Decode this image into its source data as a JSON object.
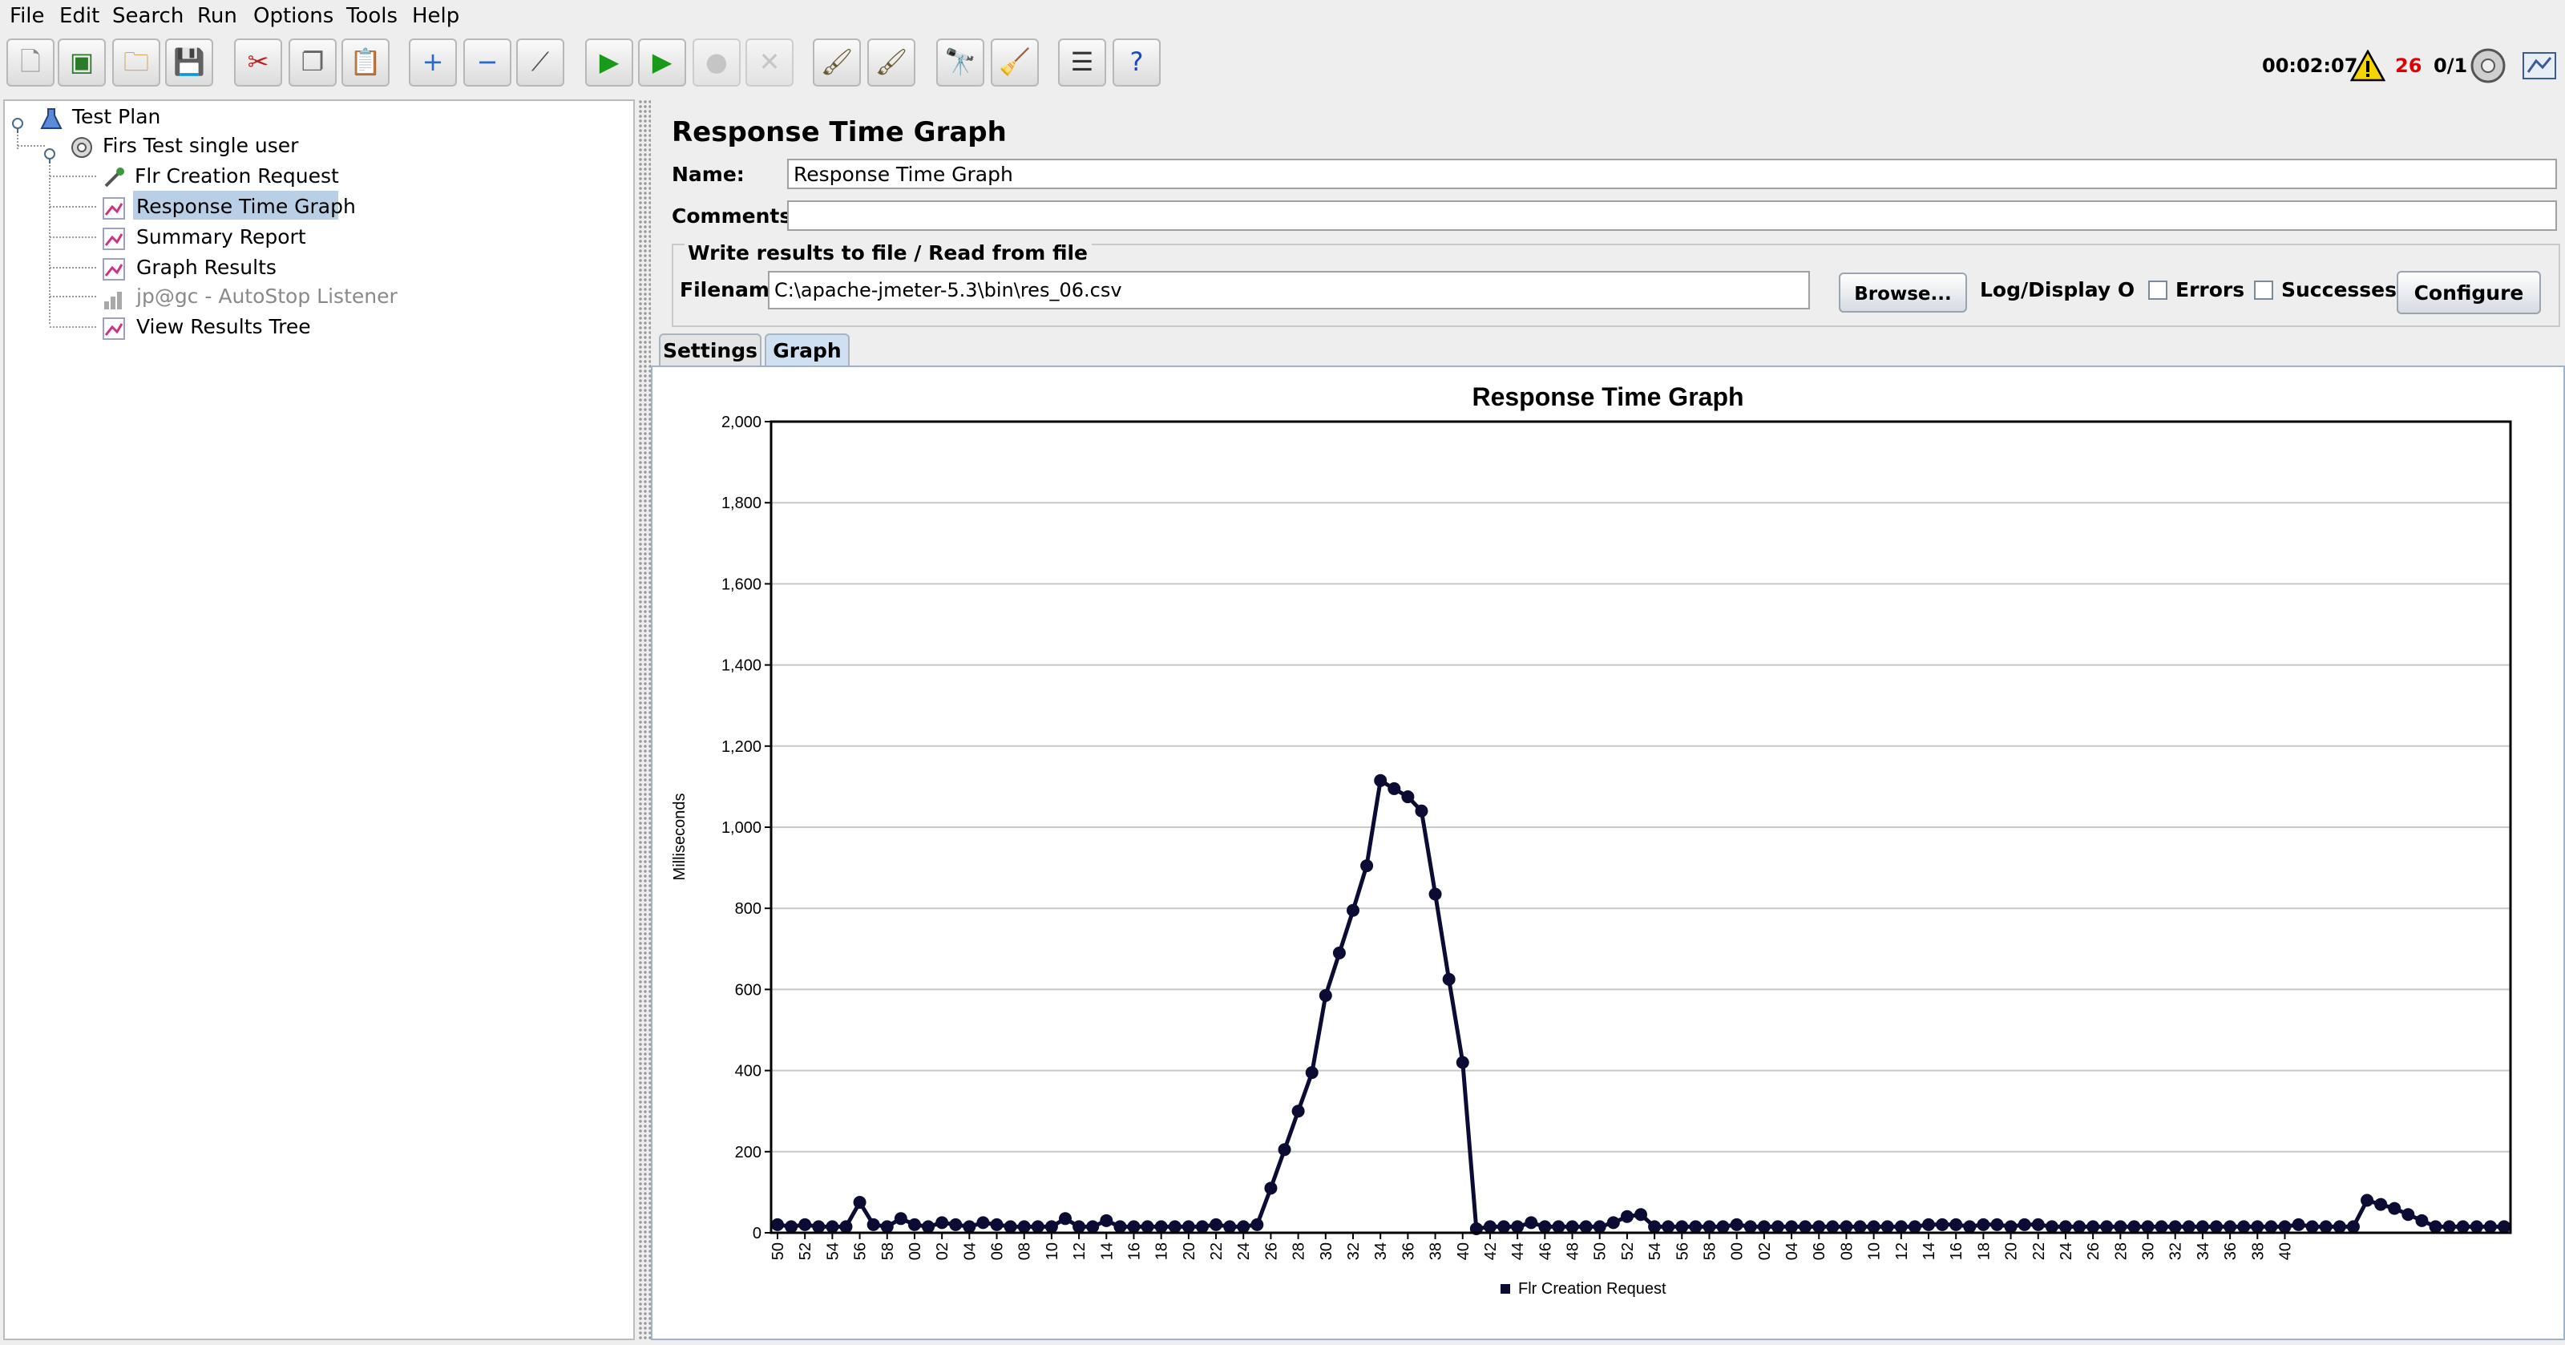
{
  "menu": [
    "File",
    "Edit",
    "Search",
    "Run",
    "Options",
    "Tools",
    "Help"
  ],
  "toolbar": {
    "buttons": [
      {
        "name": "new-icon",
        "glyph": "🗋"
      },
      {
        "name": "templates-icon",
        "glyph": "▣"
      },
      {
        "name": "open-icon",
        "glyph": "🗀"
      },
      {
        "name": "save-icon",
        "glyph": "💾"
      },
      {
        "name": "cut-icon",
        "glyph": "✂"
      },
      {
        "name": "copy-icon",
        "glyph": "❐"
      },
      {
        "name": "paste-icon",
        "glyph": "📋"
      },
      {
        "name": "expand-icon",
        "glyph": "+"
      },
      {
        "name": "collapse-icon",
        "glyph": "−"
      },
      {
        "name": "toggle-icon",
        "glyph": "⟋"
      },
      {
        "name": "start-icon",
        "glyph": "▶"
      },
      {
        "name": "start-no-pauses-icon",
        "glyph": "▶"
      },
      {
        "name": "stop-icon",
        "glyph": "●"
      },
      {
        "name": "shutdown-icon",
        "glyph": "✕"
      },
      {
        "name": "clear-icon",
        "glyph": "🖌"
      },
      {
        "name": "clear-all-icon",
        "glyph": "🖌"
      },
      {
        "name": "search-icon",
        "glyph": "🔭"
      },
      {
        "name": "reset-search-icon",
        "glyph": "🧹"
      },
      {
        "name": "function-helper-icon",
        "glyph": "☰"
      },
      {
        "name": "help-icon",
        "glyph": "?"
      }
    ],
    "elapsed_time": "00:02:07",
    "error_count": "26",
    "threads": "0/1"
  },
  "tree": {
    "items": [
      {
        "label": "Test Plan",
        "icon": "test-plan-icon",
        "disabled": false,
        "selected": false
      },
      {
        "label": "Firs Test single user",
        "icon": "thread-group-icon",
        "disabled": false,
        "selected": false
      },
      {
        "label": "Flr Creation Request",
        "icon": "http-sampler-icon",
        "disabled": false,
        "selected": false
      },
      {
        "label": "Response Time Graph",
        "icon": "graph-listener-icon",
        "disabled": false,
        "selected": true
      },
      {
        "label": "Summary Report",
        "icon": "graph-listener-icon",
        "disabled": false,
        "selected": false
      },
      {
        "label": "Graph Results",
        "icon": "graph-listener-icon",
        "disabled": false,
        "selected": false
      },
      {
        "label": "jp@gc - AutoStop Listener",
        "icon": "autostop-listener-icon",
        "disabled": true,
        "selected": false
      },
      {
        "label": "View Results Tree",
        "icon": "graph-listener-icon",
        "disabled": false,
        "selected": false
      }
    ]
  },
  "panel": {
    "title": "Response Time Graph",
    "name_label": "Name:",
    "name_value": "Response Time Graph",
    "comments_label": "Comments:",
    "comments_value": "",
    "file_group_title": "Write results to file / Read from file",
    "filename_label": "Filename",
    "filename_value": "C:\\apache-jmeter-5.3\\bin\\res_06.csv",
    "browse_label": "Browse...",
    "log_display_label": "Log/Display Only",
    "errors_label": "Errors",
    "successes_label": "Successes",
    "configure_label": "Configure",
    "tabs": [
      "Settings",
      "Graph"
    ],
    "active_tab": "Graph"
  },
  "colors": {
    "series": "#0b0b33",
    "selection": "#b8cfe5",
    "error_count": "#e00000"
  },
  "chart_data": {
    "type": "line",
    "title": "Response Time Graph",
    "xlabel": "",
    "ylabel": "Milliseconds",
    "ylim": [
      0,
      2000
    ],
    "yticks": [
      "0",
      "200",
      "400",
      "600",
      "800",
      "1,000",
      "1,200",
      "1,400",
      "1,600",
      "1,800",
      "2,000"
    ],
    "grid": true,
    "legend_position": "bottom",
    "x_tick_labels": [
      "50",
      "52",
      "54",
      "56",
      "58",
      "00",
      "02",
      "04",
      "06",
      "08",
      "10",
      "12",
      "14",
      "16",
      "18",
      "20",
      "22",
      "24",
      "26",
      "28",
      "30",
      "32",
      "34",
      "36",
      "38",
      "40",
      "42",
      "44",
      "46",
      "48",
      "50",
      "52",
      "54",
      "56",
      "58",
      "00",
      "02",
      "04",
      "06",
      "08",
      "10",
      "12",
      "14",
      "16",
      "18",
      "20",
      "22",
      "24",
      "26",
      "28",
      "30",
      "32",
      "34",
      "36",
      "38",
      "40"
    ],
    "series": [
      {
        "name": "Flr Creation Request",
        "values": [
          20,
          15,
          20,
          15,
          15,
          15,
          75,
          20,
          15,
          35,
          20,
          15,
          25,
          20,
          15,
          25,
          20,
          15,
          15,
          15,
          15,
          35,
          15,
          15,
          30,
          15,
          15,
          15,
          15,
          15,
          15,
          15,
          20,
          15,
          15,
          20,
          110,
          205,
          300,
          395,
          585,
          690,
          795,
          905,
          1115,
          1095,
          1075,
          1040,
          835,
          625,
          420,
          10,
          15,
          15,
          15,
          25,
          15,
          15,
          15,
          15,
          15,
          25,
          40,
          45,
          15,
          15,
          15,
          15,
          15,
          15,
          20,
          15,
          15,
          15,
          15,
          15,
          15,
          15,
          15,
          15,
          15,
          15,
          15,
          15,
          20,
          20,
          20,
          15,
          20,
          20,
          15,
          20,
          20,
          15,
          15,
          15,
          15,
          15,
          15,
          15,
          15,
          15,
          15,
          15,
          15,
          15,
          15,
          15,
          15,
          15,
          15,
          20,
          15,
          15,
          15,
          15,
          80,
          70,
          60,
          45,
          30,
          15,
          15,
          15,
          15,
          15,
          15
        ]
      }
    ]
  }
}
